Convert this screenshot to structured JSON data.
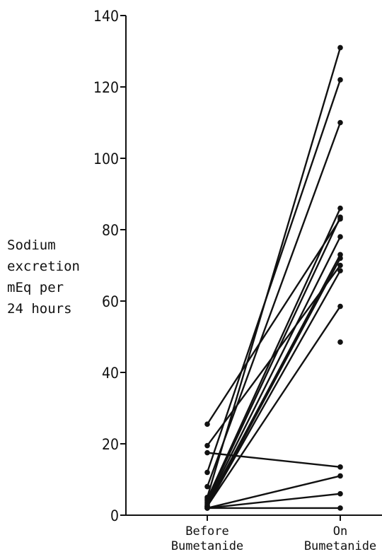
{
  "chart_data": {
    "type": "line",
    "title": "",
    "ylabel_lines": [
      "Sodium",
      "excretion",
      "mEq per",
      "24 hours"
    ],
    "categories": [
      {
        "lines": [
          "Before",
          "Bumetanide"
        ]
      },
      {
        "lines": [
          "On",
          "Bumetanide"
        ]
      }
    ],
    "ylim": [
      0,
      140
    ],
    "yticks": [
      0,
      20,
      40,
      60,
      80,
      100,
      120,
      140
    ],
    "grid": false,
    "legend": "none",
    "color": "#111111",
    "series": [
      {
        "values": [
          25.5,
          83
        ]
      },
      {
        "values": [
          19.5,
          70
        ]
      },
      {
        "values": [
          17.5,
          13.5
        ]
      },
      {
        "values": [
          12,
          122
        ]
      },
      {
        "values": [
          8,
          110
        ]
      },
      {
        "values": [
          5,
          131
        ]
      },
      {
        "values": [
          4.5,
          86
        ]
      },
      {
        "values": [
          4,
          83.5
        ]
      },
      {
        "values": [
          3.5,
          78
        ]
      },
      {
        "values": [
          3,
          73
        ]
      },
      {
        "values": [
          2.5,
          72
        ]
      },
      {
        "values": [
          2.5,
          68.5
        ]
      },
      {
        "values": [
          2.5,
          58.5
        ]
      },
      {
        "values": [
          2,
          11
        ]
      },
      {
        "values": [
          2,
          6
        ]
      },
      {
        "values": [
          2,
          2
        ]
      }
    ],
    "unpaired_points": [
      {
        "category": 1,
        "value": 48.5
      }
    ]
  }
}
